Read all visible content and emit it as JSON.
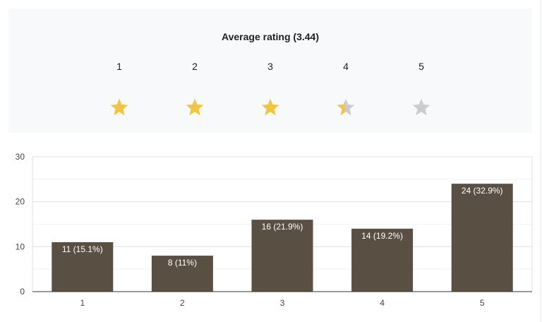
{
  "rating": {
    "title": "Average rating (3.44)",
    "average": 3.44,
    "max": 5,
    "star_labels": [
      "1",
      "2",
      "3",
      "4",
      "5"
    ],
    "filled_color": "#f4c542",
    "empty_color": "#cccccc"
  },
  "chart_data": {
    "type": "bar",
    "categories": [
      "1",
      "2",
      "3",
      "4",
      "5"
    ],
    "values": [
      11,
      8,
      16,
      14,
      24
    ],
    "data_labels": [
      "11 (15.1%)",
      "8 (11%)",
      "16 (21.9%)",
      "14 (19.2%)",
      "24 (32.9%)"
    ],
    "yticks": [
      "0",
      "10",
      "20",
      "30"
    ],
    "ylim": [
      0,
      30
    ],
    "grid": true,
    "bar_color": "#594f43",
    "label_color": "#ffffff"
  }
}
